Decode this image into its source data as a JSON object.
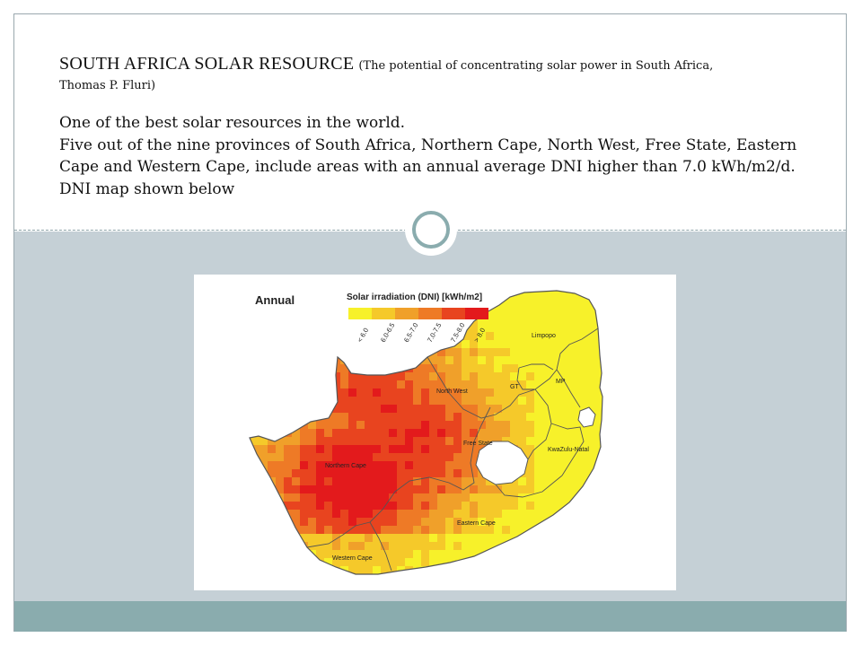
{
  "slide": {
    "title": "SOUTH AFRICA SOLAR RESOURCE",
    "source_part1": "(The potential of concentrating solar power in South Africa,",
    "source_part2": "Thomas P. Fluri)",
    "paragraphs": [
      "One of the best solar resources in the world.",
      "Five out of the nine provinces of South Africa, Northern Cape, North West, Free State, Eastern Cape and Western Cape, include areas with an annual average DNI higher than 7.0 kWh/m2/d.",
      "DNI map shown below"
    ]
  },
  "map": {
    "panel_label": "Annual",
    "legend_title": "Solar irradiation (DNI) [kWh/m2]",
    "legend_classes": [
      {
        "label": "< 6.0",
        "color": "#f7f12a"
      },
      {
        "label": "6.0-6.5",
        "color": "#f5c92a"
      },
      {
        "label": "6.5-7.0",
        "color": "#f0a02a"
      },
      {
        "label": "7.0-7.5",
        "color": "#ee7a26"
      },
      {
        "label": "7.5-8.0",
        "color": "#e8441f"
      },
      {
        "label": "> 8.0",
        "color": "#e31a1c"
      }
    ],
    "province_labels": {
      "limpopo": "Limpopo",
      "north_west": "North West",
      "gauteng": "GT",
      "mpumalanga": "MP",
      "free_state": "Free State",
      "kwazulu_natal": "KwaZulu-Natal",
      "northern_cape": "Northern Cape",
      "eastern_cape": "Eastern Cape",
      "western_cape": "Western Cape"
    }
  },
  "colors": {
    "frame_border": "#9aa8ae",
    "lower_panel": "#c5d0d6",
    "footer_bar": "#8aacae"
  }
}
